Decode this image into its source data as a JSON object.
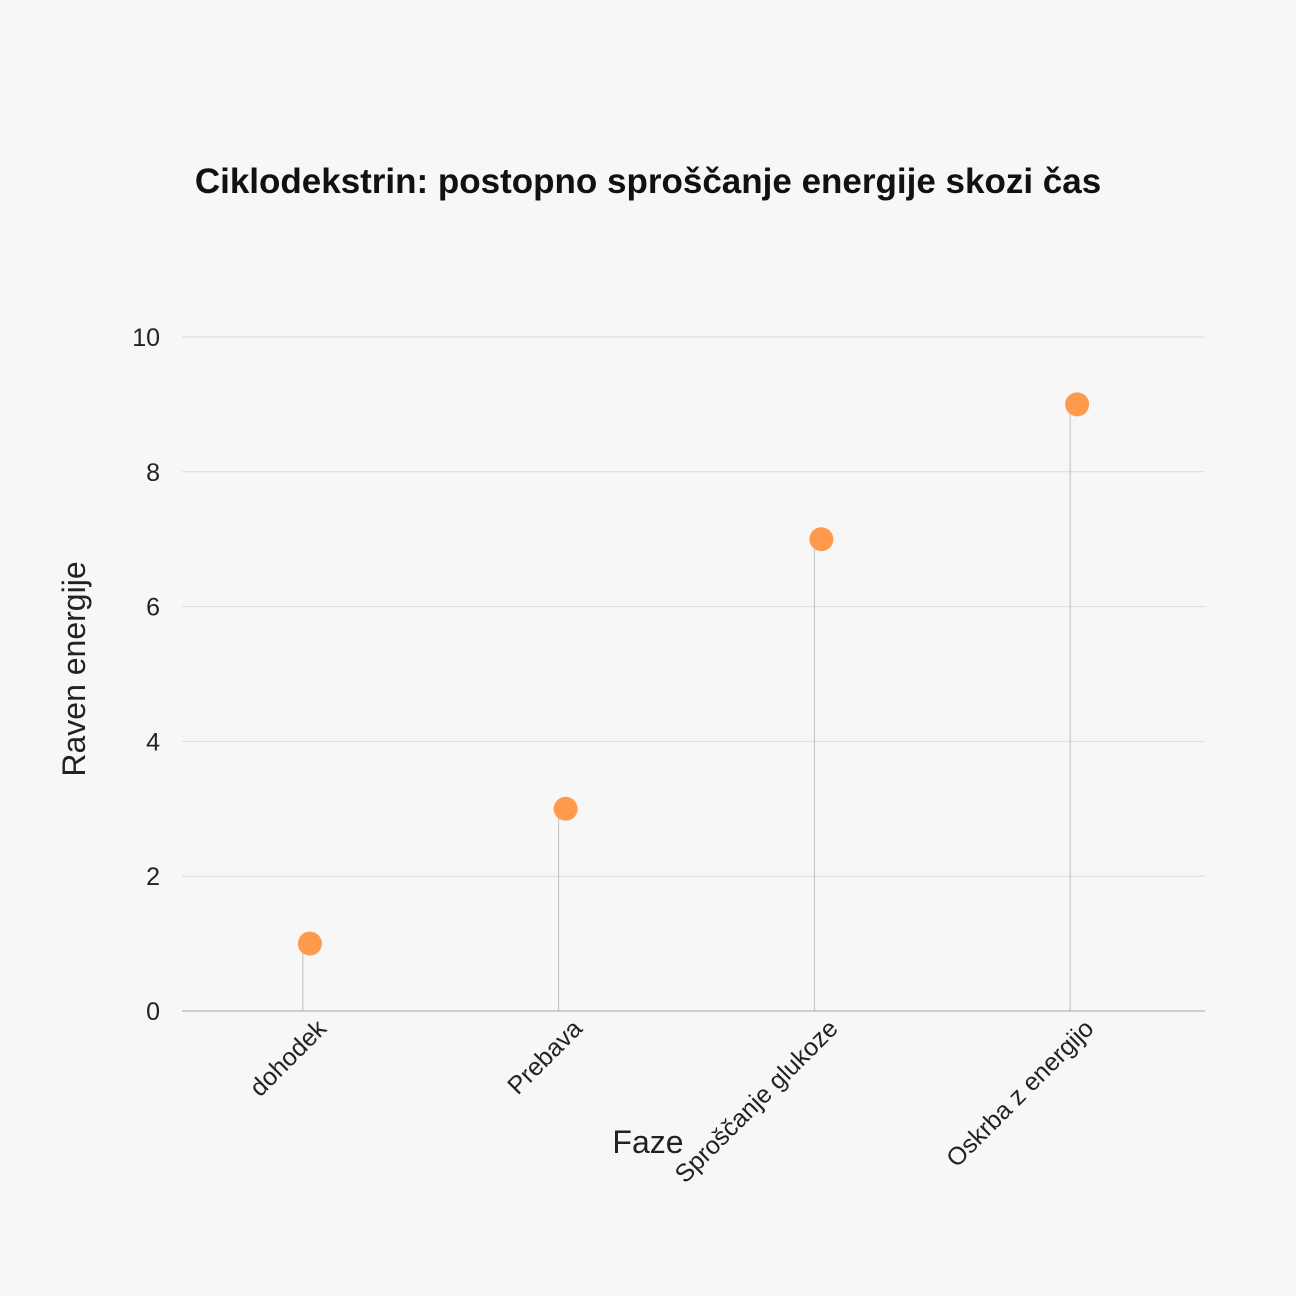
{
  "chart_data": {
    "type": "scatter",
    "title": "Ciklodekstrin: postopno sproščanje energije skozi čas",
    "xlabel": "Faze",
    "ylabel": "Raven energije",
    "categories": [
      "dohodek",
      "Prebava",
      "Sproščanje glukoze",
      "Oskrba z energijo"
    ],
    "series": [
      {
        "values": [
          1,
          3,
          7,
          9
        ],
        "color": "#ff9a4d"
      }
    ],
    "ylim": [
      0,
      10
    ],
    "yticks": [
      0,
      2,
      4,
      6,
      8,
      10
    ],
    "grid": true,
    "legend": "none"
  }
}
